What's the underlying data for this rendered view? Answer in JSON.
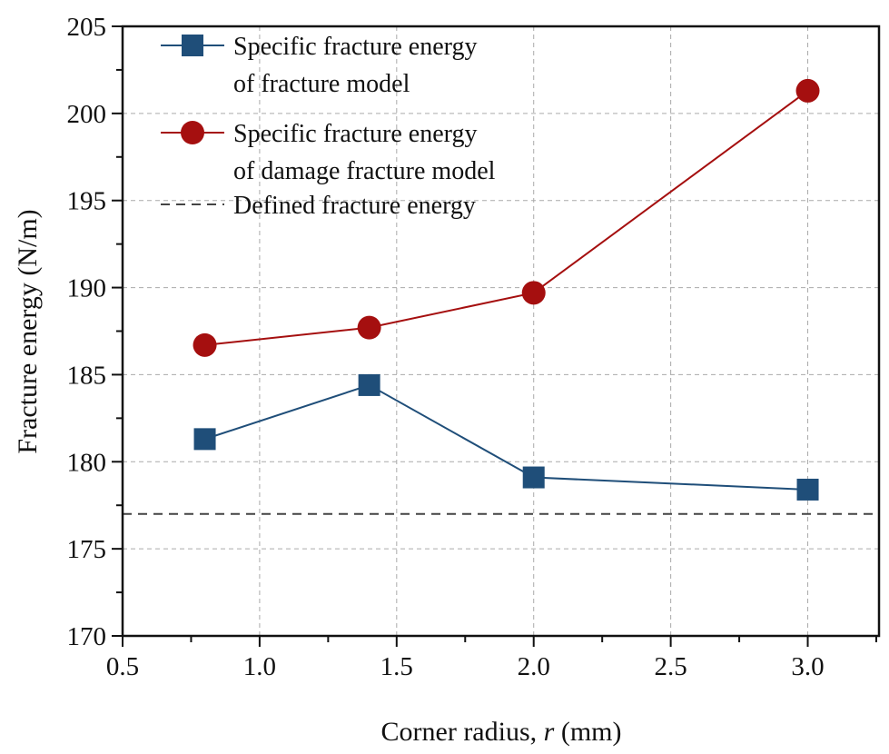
{
  "chart_data": {
    "type": "line",
    "title": "",
    "xlabel_prefix": "Corner radius, ",
    "xlabel_var": "r",
    "xlabel_suffix": " (mm)",
    "ylabel": "Fracture energy (N/m)",
    "xlim": [
      0.5,
      3.26
    ],
    "ylim": [
      170,
      205
    ],
    "xticks": [
      "0.5",
      "1.0",
      "1.5",
      "2.0",
      "2.5",
      "3.0"
    ],
    "yticks": [
      "170",
      "175",
      "180",
      "185",
      "190",
      "195",
      "200",
      "205"
    ],
    "grid": true,
    "legend_position": "top-left",
    "x": [
      0.8,
      1.4,
      2.0,
      3.0
    ],
    "series": [
      {
        "name": "Specific fracture energy of fracture model",
        "legend_lines": [
          "Specific fracture energy",
          "of fracture model"
        ],
        "marker": "square",
        "color": "#1f4e79",
        "values": [
          181.3,
          184.4,
          179.1,
          178.4
        ]
      },
      {
        "name": "Specific fracture energy of damage fracture model",
        "legend_lines": [
          "Specific fracture energy",
          "of damage fracture model"
        ],
        "marker": "circle",
        "color": "#a50f0f",
        "values": [
          186.7,
          187.7,
          189.7,
          201.3
        ]
      }
    ],
    "reference_line": {
      "name": "Defined fracture energy",
      "value": 177.0,
      "color": "#444444",
      "style": "dashed"
    }
  }
}
